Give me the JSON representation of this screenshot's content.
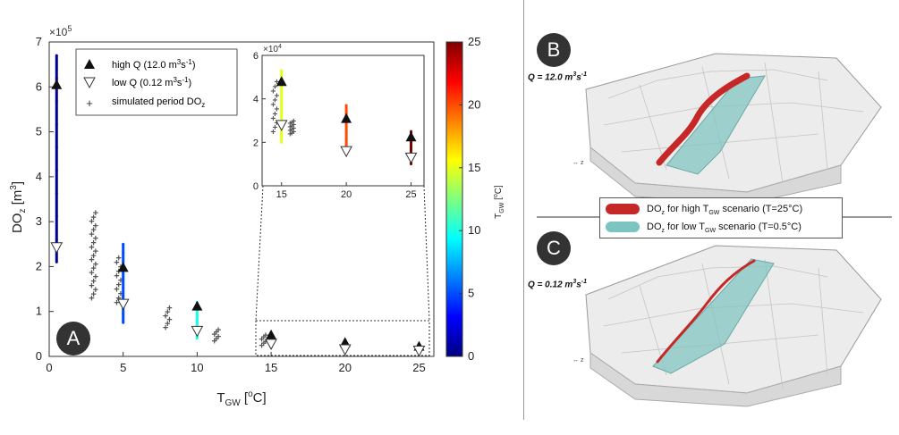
{
  "chart_data": {
    "type": "scatter",
    "xlabel": "T",
    "xlabel_sub": "GW",
    "xlabel_unit": " [",
    "xlabel_sup": "o",
    "xlabel_end": "C]",
    "ylabel": "DO",
    "ylabel_sub": "z",
    "ylabel_unit": " [m",
    "ylabel_sup": "3",
    "ylabel_end": "]",
    "y_multiplier": "×10",
    "y_multiplier_exp": "5",
    "xlim": [
      0,
      26
    ],
    "ylim": [
      0,
      700000
    ],
    "xticks": [
      "0",
      "5",
      "10",
      "15",
      "20",
      "25"
    ],
    "yticks": [
      "0",
      "1",
      "2",
      "3",
      "4",
      "5",
      "6",
      "7"
    ],
    "colorbar": {
      "label": "T",
      "label_sub": "GW",
      "label_unit": " [",
      "label_sup": "o",
      "label_end": "C]",
      "range": [
        0,
        25
      ],
      "ticks": [
        "0",
        "5",
        "10",
        "15",
        "20",
        "25"
      ]
    },
    "legend": {
      "high_q": "high Q (12.0 m",
      "high_q_sup": "3",
      "high_q_end": "s",
      "high_q_sup2": "-1",
      "high_q_close": ")",
      "low_q": "low Q  (0.12 m",
      "low_q_sup": "3",
      "low_q_end": "s",
      "low_q_sup2": "-1",
      "low_q_close": ")",
      "simulated": "simulated period DO",
      "simulated_sub": "z"
    },
    "high_q": [
      [
        0.5,
        605000
      ],
      [
        5,
        198000
      ],
      [
        10,
        112000
      ],
      [
        15,
        48000
      ],
      [
        20,
        31000
      ],
      [
        25,
        22500
      ]
    ],
    "low_q": [
      [
        0.5,
        243000
      ],
      [
        5,
        117000
      ],
      [
        10,
        57000
      ],
      [
        15,
        28000
      ],
      [
        20,
        16000
      ],
      [
        25,
        13000
      ]
    ],
    "color_ranges": [
      {
        "x": 0.5,
        "ymin": 210000,
        "ymax": 670000
      },
      {
        "x": 5,
        "ymin": 75000,
        "ymax": 250000
      },
      {
        "x": 10,
        "ymin": 40000,
        "ymax": 120000
      },
      {
        "x": 15,
        "ymin": 20000,
        "ymax": 53000
      },
      {
        "x": 20,
        "ymin": 15000,
        "ymax": 37000
      },
      {
        "x": 25,
        "ymin": 10000,
        "ymax": 25000
      }
    ],
    "simulated_clusters": [
      {
        "x": 3.0,
        "ymin": 130000,
        "ymax": 320000
      },
      {
        "x": 4.7,
        "ymin": 120000,
        "ymax": 220000
      },
      {
        "x": 8.0,
        "ymin": 65000,
        "ymax": 108000
      },
      {
        "x": 11.3,
        "ymin": 35000,
        "ymax": 60000
      },
      {
        "x": 14.5,
        "ymin": 25000,
        "ymax": 48000
      }
    ],
    "inset": {
      "xlim": [
        13.5,
        26
      ],
      "ylim": [
        0,
        60000
      ],
      "xticks": [
        "15",
        "20",
        "25"
      ],
      "yticks": [
        "0",
        "2",
        "4",
        "6"
      ],
      "multiplier": "×10",
      "multiplier_exp": "4"
    }
  },
  "badges": {
    "a": "A",
    "b": "B",
    "c": "C"
  },
  "scenarios": {
    "b_label": "Q = 12.0 m",
    "b_sup": "3",
    "b_end": "s",
    "b_sup2": "-1",
    "c_label": "Q = 0.12 m",
    "c_sup": "3",
    "c_end": "s",
    "c_sup2": "-1"
  },
  "legend2": {
    "high_pre": "DO",
    "high_sub": "z",
    "high_mid": " for high T",
    "high_sub2": "GW",
    "high_post": " scenario (T=25°C)",
    "low_pre": "DO",
    "low_sub": "z",
    "low_mid": " for low T",
    "low_sub2": "GW",
    "low_post": " scenario (T=0.5°C)",
    "high_color": "#c62828",
    "low_color": "#7cc4c0"
  }
}
